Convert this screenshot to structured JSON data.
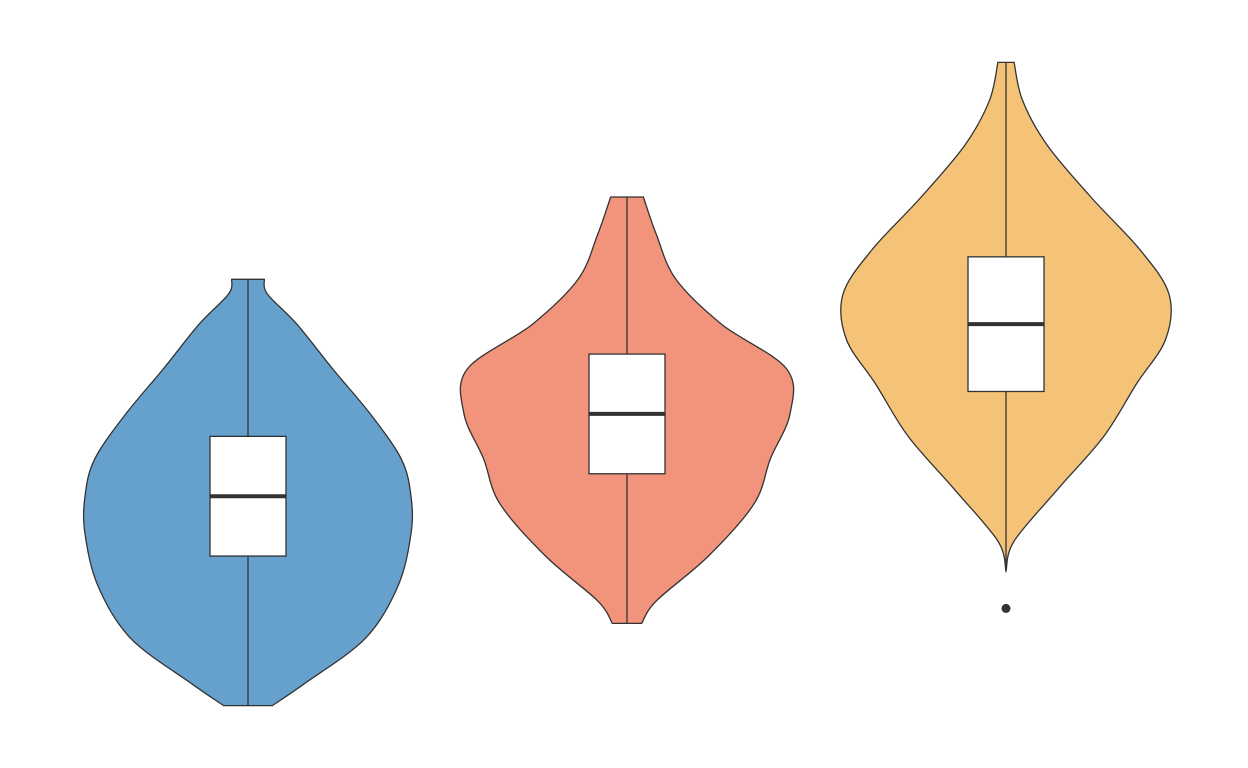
{
  "chart_data": {
    "type": "violin",
    "title": "",
    "xlabel": "",
    "ylabel": "",
    "ylim": [
      0,
      10
    ],
    "grid": false,
    "legend": "none",
    "outline_color": "#333333",
    "box_fill": "#ffffff",
    "series": [
      {
        "color": "#66a0cc",
        "min": 0.7,
        "q1": 2.7,
        "median": 3.5,
        "q3": 4.3,
        "max": 6.4,
        "outliers": [],
        "density": [
          [
            0.7,
            0.15
          ],
          [
            1.0,
            0.35
          ],
          [
            1.6,
            0.72
          ],
          [
            2.3,
            0.92
          ],
          [
            3.0,
            1.0
          ],
          [
            3.5,
            1.0
          ],
          [
            4.0,
            0.94
          ],
          [
            4.6,
            0.75
          ],
          [
            5.2,
            0.52
          ],
          [
            5.8,
            0.3
          ],
          [
            6.2,
            0.12
          ],
          [
            6.4,
            0.1
          ]
        ]
      },
      {
        "color": "#f2947b",
        "min": 1.8,
        "q1": 3.8,
        "median": 4.6,
        "q3": 5.4,
        "max": 7.5,
        "outliers": [],
        "density": [
          [
            1.8,
            0.09
          ],
          [
            2.1,
            0.18
          ],
          [
            2.7,
            0.5
          ],
          [
            3.4,
            0.78
          ],
          [
            4.0,
            0.88
          ],
          [
            4.6,
            1.0
          ],
          [
            5.2,
            0.98
          ],
          [
            5.8,
            0.58
          ],
          [
            6.4,
            0.3
          ],
          [
            7.0,
            0.18
          ],
          [
            7.5,
            0.1
          ]
        ]
      },
      {
        "color": "#f5c378",
        "min": 2.5,
        "q1": 4.9,
        "median": 5.8,
        "q3": 6.7,
        "max": 9.3,
        "outliers": [
          2.0
        ],
        "density": [
          [
            2.5,
            0.0
          ],
          [
            2.9,
            0.05
          ],
          [
            3.6,
            0.32
          ],
          [
            4.3,
            0.6
          ],
          [
            5.0,
            0.8
          ],
          [
            5.6,
            0.98
          ],
          [
            6.2,
            1.0
          ],
          [
            6.8,
            0.82
          ],
          [
            7.5,
            0.52
          ],
          [
            8.2,
            0.25
          ],
          [
            8.8,
            0.1
          ],
          [
            9.3,
            0.05
          ]
        ]
      }
    ]
  }
}
